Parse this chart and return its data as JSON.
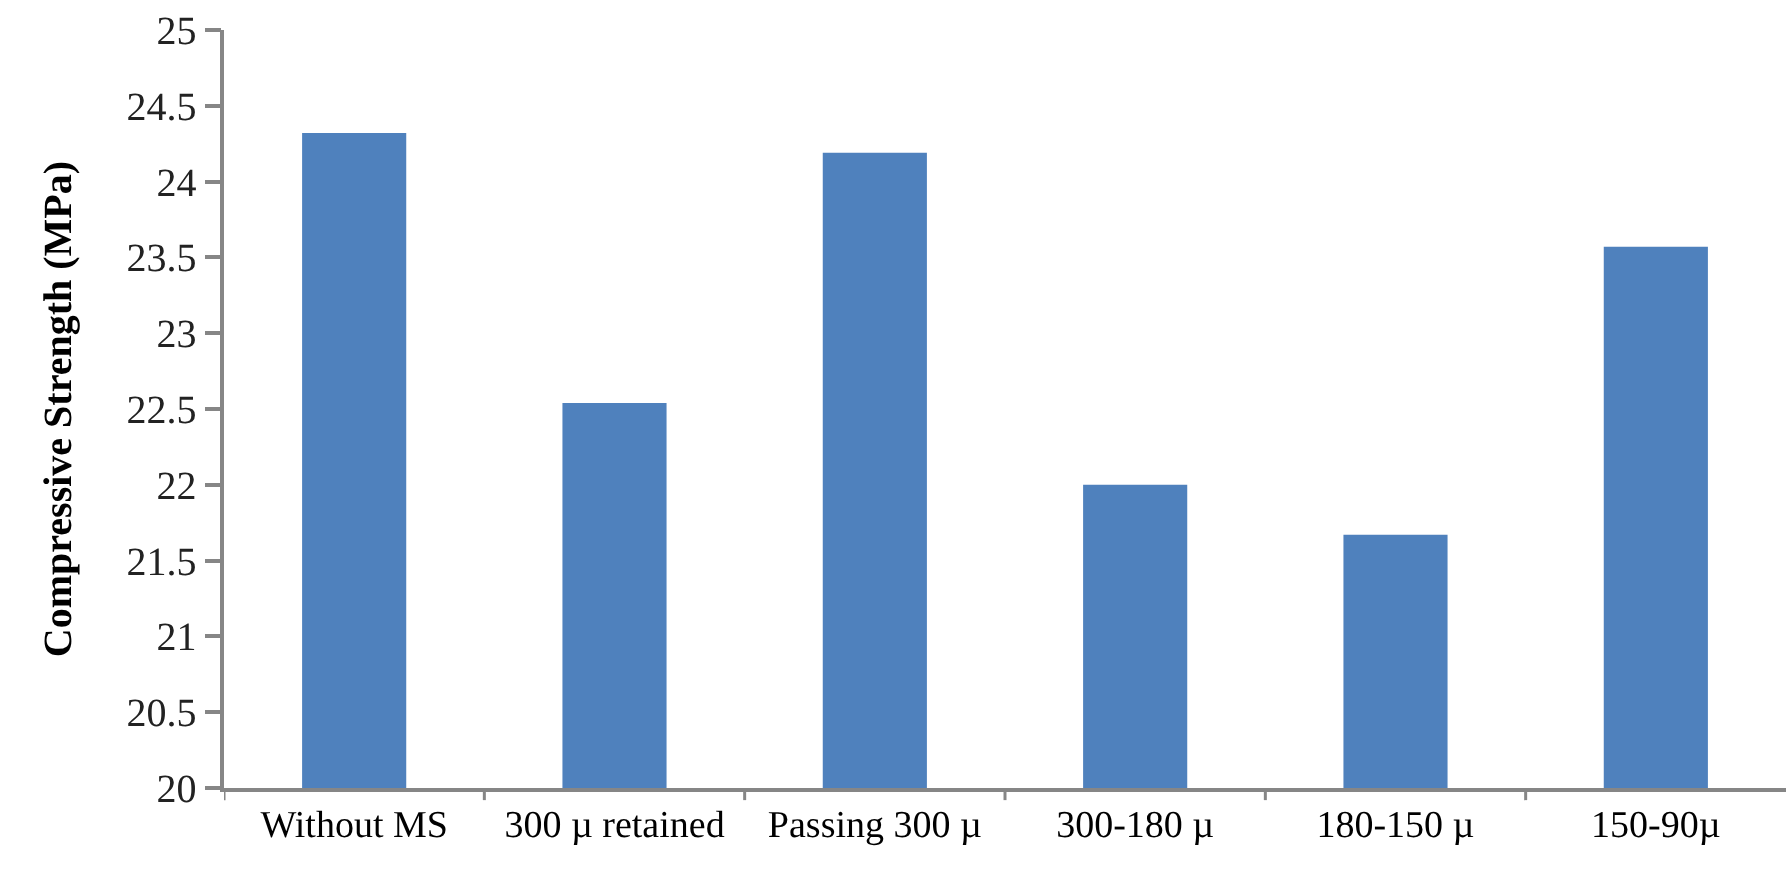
{
  "chart_data": {
    "type": "bar",
    "ylabel": "Compressive Strength (MPa)",
    "categories": [
      "Without MS",
      "300 µ retained",
      "Passing 300 µ",
      "300-180 µ",
      "180-150 µ",
      "150-90µ"
    ],
    "values": [
      24.32,
      22.54,
      24.19,
      22.0,
      21.67,
      23.57
    ],
    "color": "#4f81bd",
    "ylim": [
      20,
      25
    ],
    "yticks": [
      20,
      20.5,
      21,
      21.5,
      22,
      22.5,
      23,
      23.5,
      24,
      24.5,
      25
    ]
  }
}
